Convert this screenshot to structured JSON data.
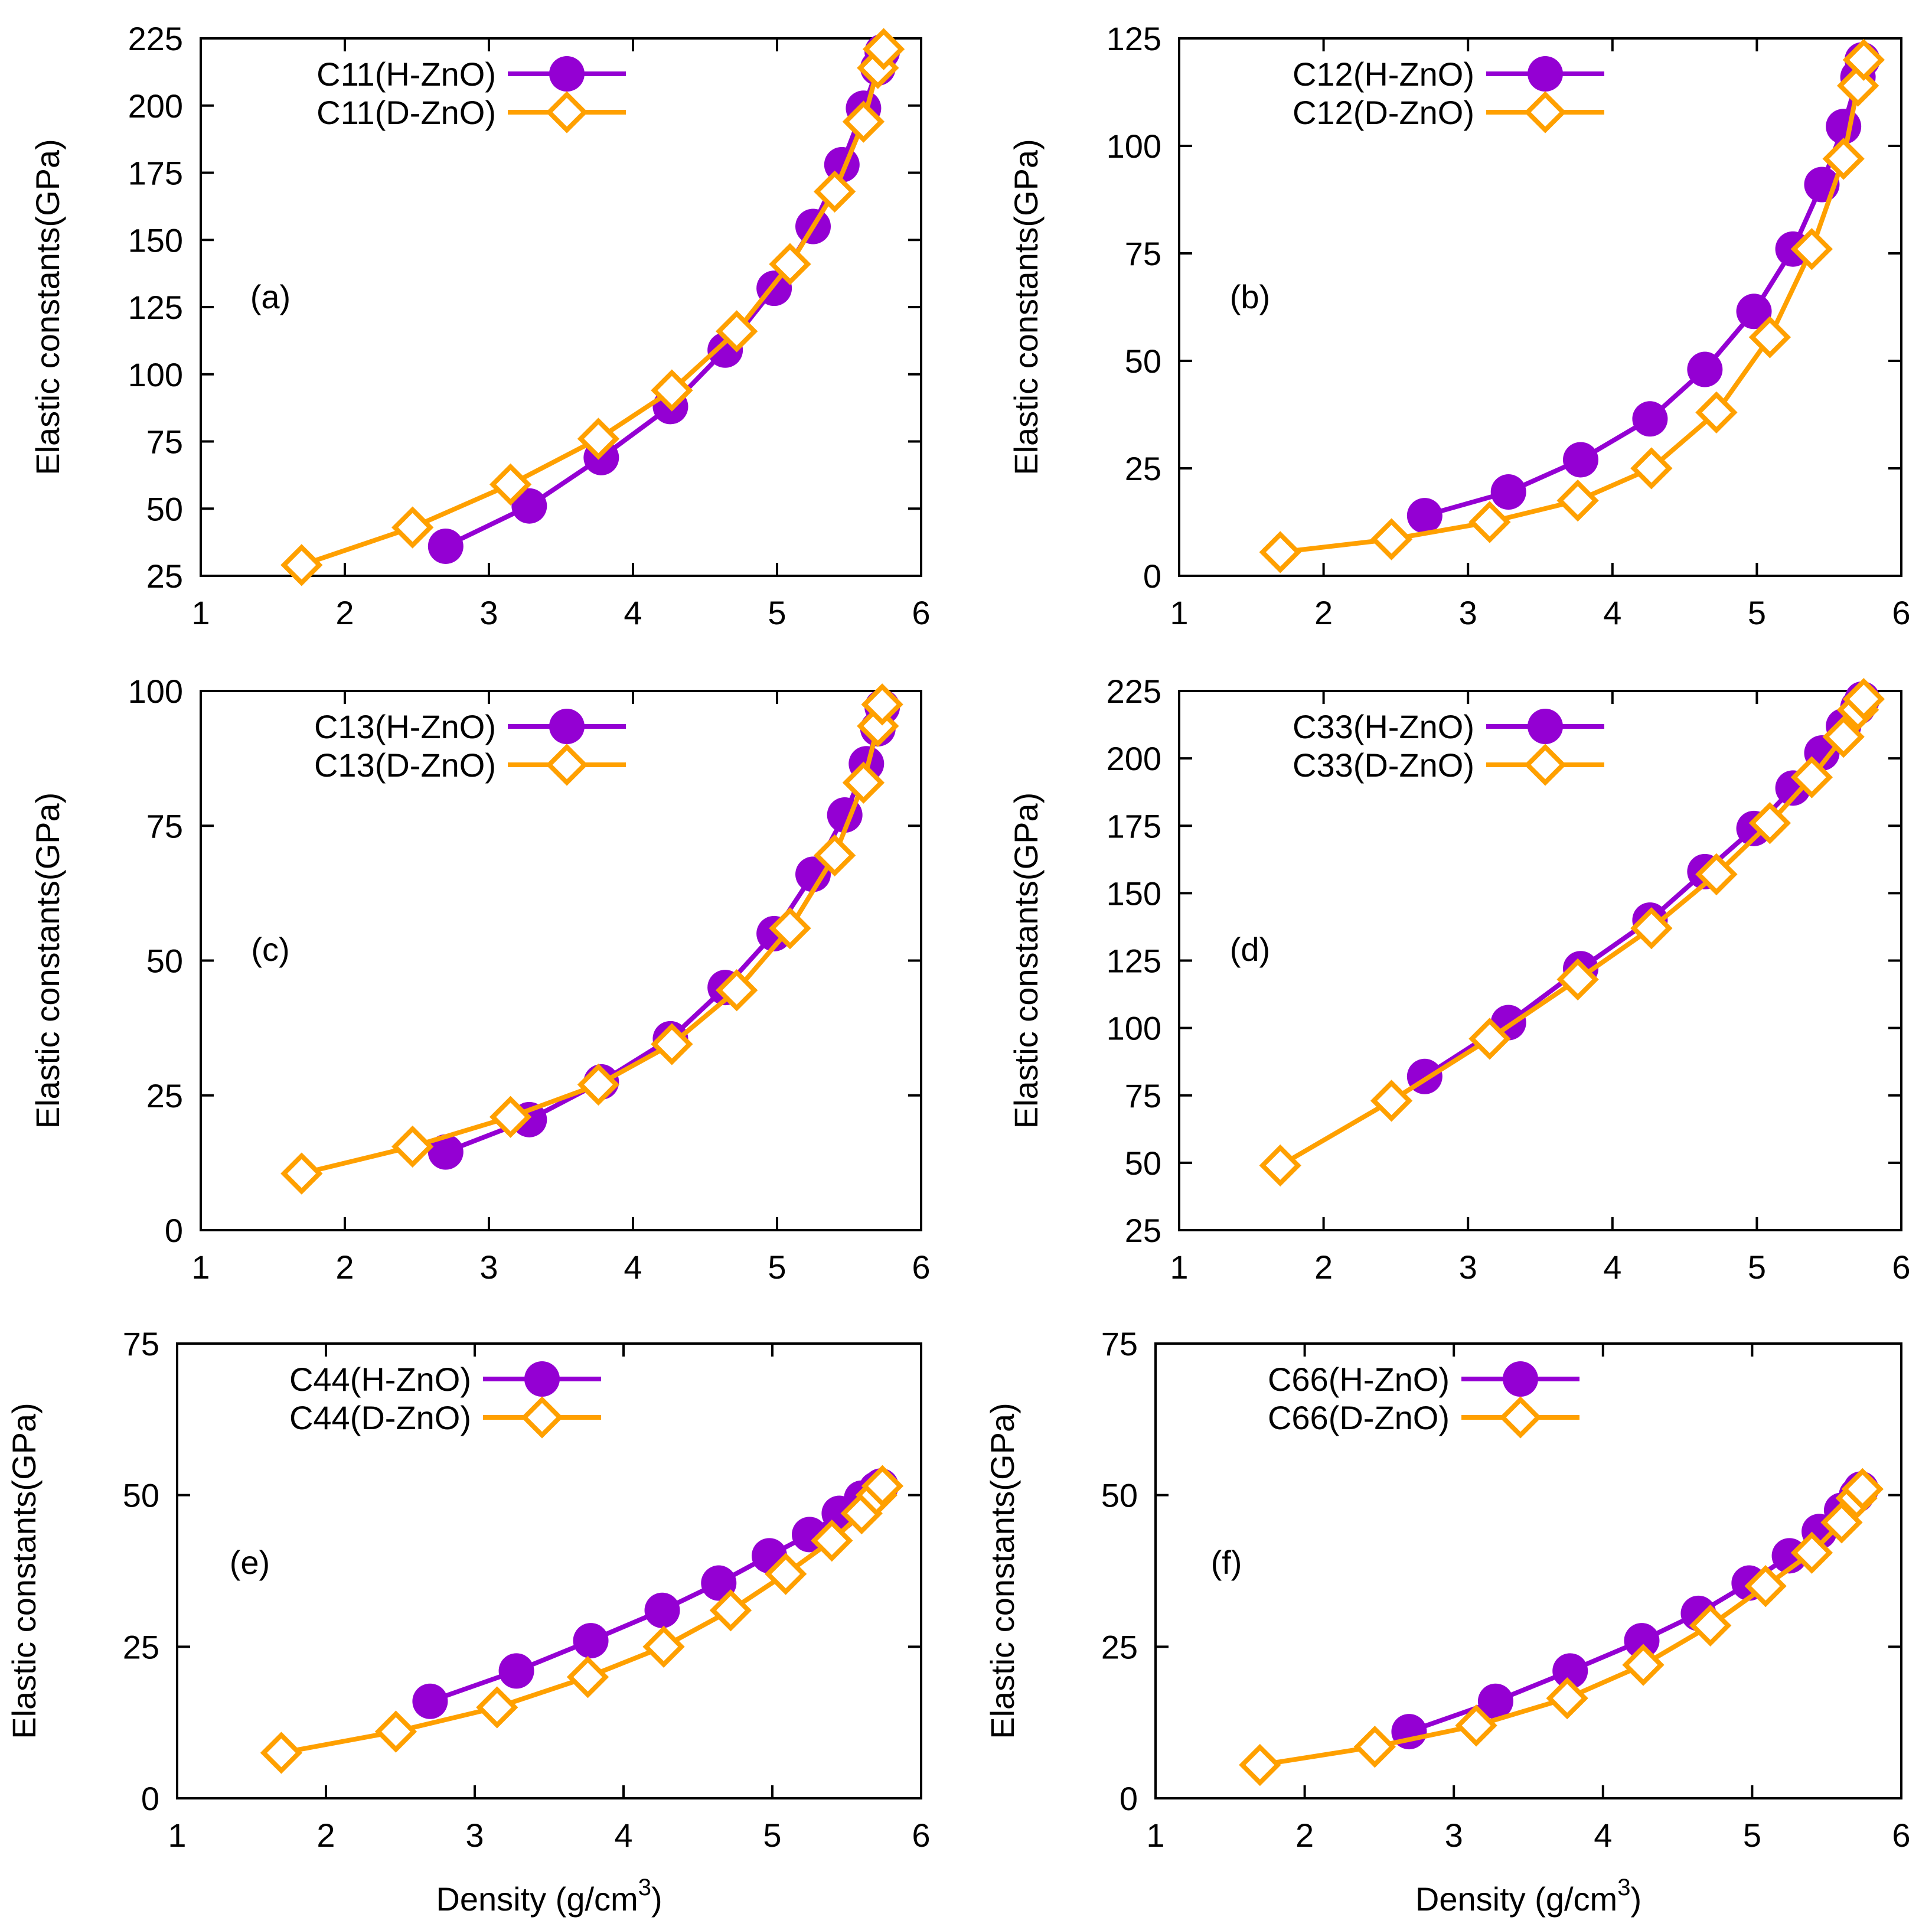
{
  "figure": {
    "ylabel": "Elastic constants(GPa)",
    "xlabel_base": "Density (g/cm",
    "xlabel_sup": "3",
    "xlabel_close": ")"
  },
  "colors": {
    "h_series": "#9400D3",
    "d_series": "#FFA000",
    "axis": "#000000"
  },
  "chart_data": [
    {
      "type": "line",
      "tag": "(a)",
      "xlim": [
        1,
        6
      ],
      "xticks": [
        1,
        2,
        3,
        4,
        5,
        6
      ],
      "ylim": [
        25,
        225
      ],
      "yticks": [
        25,
        50,
        75,
        100,
        125,
        150,
        175,
        200,
        225
      ],
      "ylabel": "Elastic constants(GPa)",
      "series": [
        {
          "name": "C11(H-ZnO)",
          "marker": "circle",
          "x": [
            2.7,
            3.28,
            3.78,
            4.26,
            4.64,
            4.98,
            5.25,
            5.45,
            5.6,
            5.7,
            5.73
          ],
          "y": [
            36,
            51,
            69,
            88,
            109,
            132,
            155,
            178,
            199,
            214,
            220
          ]
        },
        {
          "name": "C11(D-ZnO)",
          "marker": "diamond",
          "x": [
            1.7,
            2.47,
            3.15,
            3.76,
            4.27,
            4.72,
            5.09,
            5.4,
            5.6,
            5.7,
            5.74
          ],
          "y": [
            29,
            43,
            59,
            76,
            94,
            116,
            141,
            168,
            194,
            214,
            221
          ]
        }
      ]
    },
    {
      "type": "line",
      "tag": "(b)",
      "xlim": [
        1,
        6
      ],
      "xticks": [
        1,
        2,
        3,
        4,
        5,
        6
      ],
      "ylim": [
        0,
        125
      ],
      "yticks": [
        0,
        25,
        50,
        75,
        100,
        125
      ],
      "ylabel": "Elastic constants(GPa)",
      "series": [
        {
          "name": "C12(H-ZnO)",
          "marker": "circle",
          "x": [
            2.7,
            3.28,
            3.78,
            4.26,
            4.64,
            4.98,
            5.25,
            5.45,
            5.6,
            5.7,
            5.73
          ],
          "y": [
            14,
            19.5,
            27,
            36.5,
            48,
            61.5,
            76,
            91,
            104.5,
            116,
            120
          ]
        },
        {
          "name": "C12(D-ZnO)",
          "marker": "diamond",
          "x": [
            1.7,
            2.47,
            3.15,
            3.76,
            4.27,
            4.72,
            5.09,
            5.38,
            5.6,
            5.7,
            5.74
          ],
          "y": [
            5.5,
            8.5,
            12.5,
            17.5,
            25,
            38,
            55.5,
            76,
            97,
            114,
            120
          ]
        }
      ]
    },
    {
      "type": "line",
      "tag": "(c)",
      "xlim": [
        1,
        6
      ],
      "xticks": [
        1,
        2,
        3,
        4,
        5,
        6
      ],
      "ylim": [
        0,
        100
      ],
      "yticks": [
        0,
        25,
        50,
        75,
        100
      ],
      "ylabel": "Elastic constants(GPa)",
      "series": [
        {
          "name": "C13(H-ZnO)",
          "marker": "circle",
          "x": [
            2.7,
            3.28,
            3.78,
            4.26,
            4.64,
            4.98,
            5.25,
            5.47,
            5.62,
            5.7,
            5.73
          ],
          "y": [
            14.5,
            20.5,
            27.5,
            35.5,
            45,
            55,
            66,
            77,
            86.5,
            93,
            97
          ]
        },
        {
          "name": "C13(D-ZnO)",
          "marker": "diamond",
          "x": [
            1.7,
            2.47,
            3.15,
            3.76,
            4.27,
            4.72,
            5.09,
            5.4,
            5.6,
            5.7,
            5.73
          ],
          "y": [
            10.5,
            15.5,
            21,
            27,
            34.5,
            44.5,
            56,
            69.5,
            83,
            93.5,
            97.5
          ]
        }
      ]
    },
    {
      "type": "line",
      "tag": "(d)",
      "xlim": [
        1,
        6
      ],
      "xticks": [
        1,
        2,
        3,
        4,
        5,
        6
      ],
      "ylim": [
        25,
        225
      ],
      "yticks": [
        25,
        50,
        75,
        100,
        125,
        150,
        175,
        200,
        225
      ],
      "ylabel": "Elastic constants(GPa)",
      "series": [
        {
          "name": "C33(H-ZnO)",
          "marker": "circle",
          "x": [
            2.7,
            3.28,
            3.78,
            4.26,
            4.64,
            4.98,
            5.25,
            5.45,
            5.6,
            5.7,
            5.73
          ],
          "y": [
            82,
            102,
            122,
            140,
            158,
            174,
            189,
            202,
            212,
            219,
            222
          ]
        },
        {
          "name": "C33(D-ZnO)",
          "marker": "diamond",
          "x": [
            1.7,
            2.47,
            3.15,
            3.76,
            4.27,
            4.72,
            5.09,
            5.38,
            5.6,
            5.7,
            5.74
          ],
          "y": [
            49,
            73,
            96,
            118,
            137,
            157,
            176,
            193,
            208,
            218,
            222
          ]
        }
      ]
    },
    {
      "type": "line",
      "tag": "(e)",
      "xlim": [
        1,
        6
      ],
      "xticks": [
        1,
        2,
        3,
        4,
        5,
        6
      ],
      "ylim": [
        0,
        75
      ],
      "yticks": [
        0,
        25,
        50,
        75
      ],
      "ylabel": "Elastic constants(GPa)",
      "xlabel": "Density (g/cm3)",
      "series": [
        {
          "name": "C44(H-ZnO)",
          "marker": "circle",
          "x": [
            2.7,
            3.28,
            3.78,
            4.26,
            4.64,
            4.98,
            5.25,
            5.45,
            5.6,
            5.7,
            5.73
          ],
          "y": [
            16,
            21,
            26,
            31,
            35.5,
            40,
            43.5,
            47,
            49.5,
            51,
            51.5
          ]
        },
        {
          "name": "C44(D-ZnO)",
          "marker": "diamond",
          "x": [
            1.7,
            2.47,
            3.15,
            3.76,
            4.27,
            4.72,
            5.09,
            5.4,
            5.6,
            5.7,
            5.74
          ],
          "y": [
            7.5,
            11,
            15,
            20,
            25,
            31,
            37,
            42.5,
            47,
            50,
            51.5
          ]
        }
      ]
    },
    {
      "type": "line",
      "tag": "(f)",
      "xlim": [
        1,
        6
      ],
      "xticks": [
        1,
        2,
        3,
        4,
        5,
        6
      ],
      "ylim": [
        0,
        75
      ],
      "yticks": [
        0,
        25,
        50,
        75
      ],
      "ylabel": "Elastic constants(GPa)",
      "xlabel": "Density (g/cm3)",
      "series": [
        {
          "name": "C66(H-ZnO)",
          "marker": "circle",
          "x": [
            2.7,
            3.28,
            3.78,
            4.26,
            4.64,
            4.98,
            5.25,
            5.45,
            5.6,
            5.7,
            5.73
          ],
          "y": [
            11,
            16,
            21,
            26,
            30.5,
            35.5,
            40,
            44,
            47.5,
            50,
            51
          ]
        },
        {
          "name": "C66(D-ZnO)",
          "marker": "diamond",
          "x": [
            1.7,
            2.47,
            3.15,
            3.76,
            4.27,
            4.72,
            5.09,
            5.4,
            5.6,
            5.7,
            5.74
          ],
          "y": [
            5.5,
            8.5,
            12,
            16.5,
            22,
            28.5,
            35,
            40.5,
            45.5,
            49.5,
            51
          ]
        }
      ]
    }
  ]
}
